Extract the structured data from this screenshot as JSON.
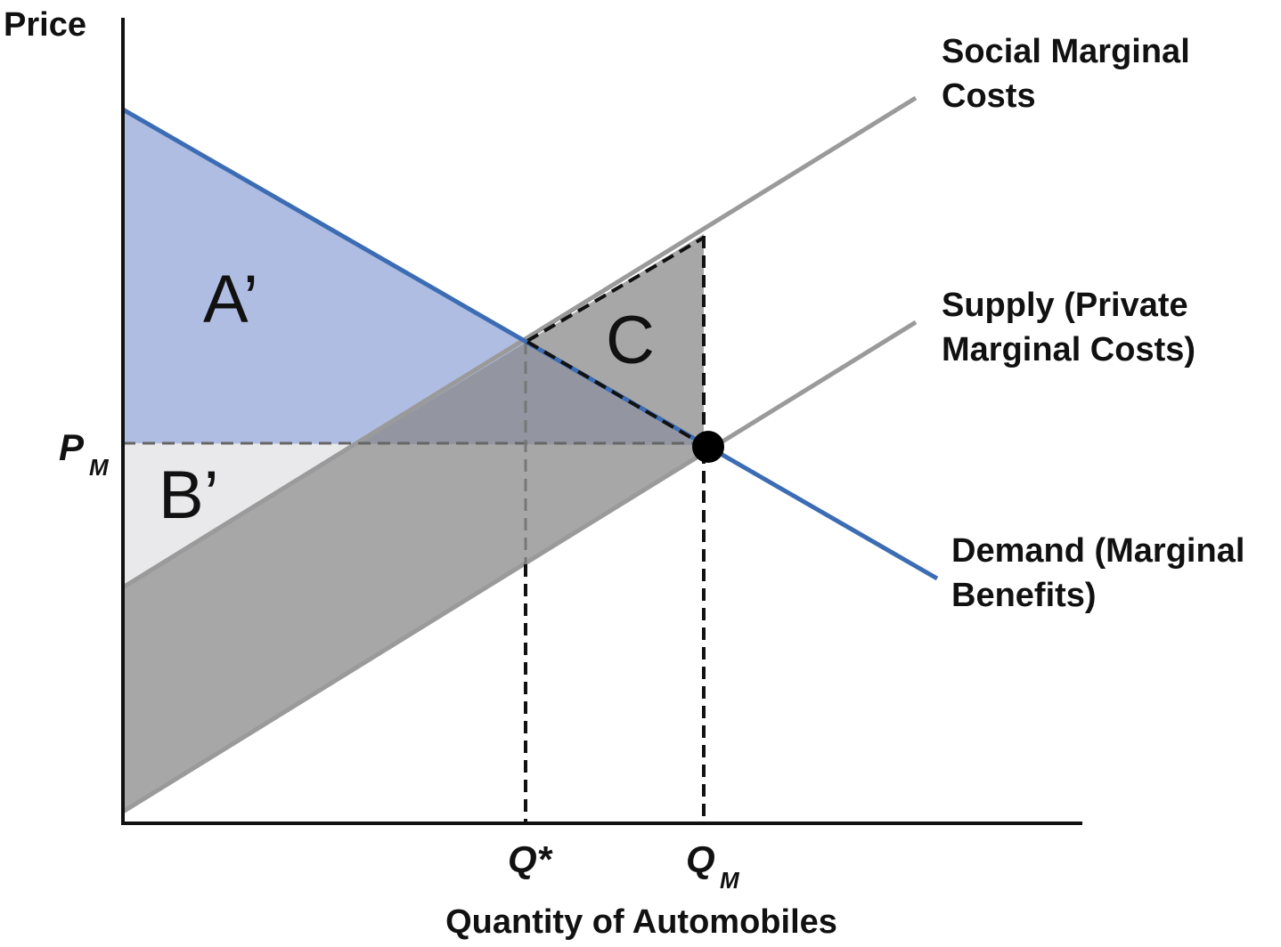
{
  "y_axis_label": "Price",
  "x_axis_label": "Quantity of Automobiles",
  "curves": {
    "social_marginal_costs": [
      "Social Marginal",
      "Costs"
    ],
    "supply": [
      "Supply (Private",
      "Marginal Costs)"
    ],
    "demand": [
      "Demand (Marginal",
      "Benefits)"
    ]
  },
  "areas": {
    "a": "A’",
    "b": "B’",
    "c": "C"
  },
  "price_marker": {
    "main": "P",
    "sub": "M"
  },
  "quantity_markers": {
    "optimal": "Q*",
    "market": {
      "main": "Q",
      "sub": "M"
    }
  }
}
